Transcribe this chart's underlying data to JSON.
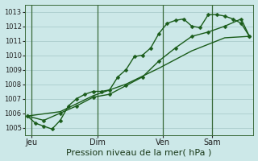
{
  "title": "Pression niveau de la mer( hPa )",
  "background_color": "#cce8e8",
  "plot_bg_color": "#cce8e8",
  "grid_color": "#aacccc",
  "line_color": "#1a5c1a",
  "ylim": [
    1004.5,
    1013.5
  ],
  "xlim": [
    -0.3,
    27.5
  ],
  "ytick_vals": [
    1005,
    1006,
    1007,
    1008,
    1009,
    1010,
    1011,
    1012,
    1013
  ],
  "day_labels": [
    "Jeu",
    "Dim",
    "Ven",
    "Sam"
  ],
  "day_positions": [
    0.5,
    8.5,
    16.5,
    22.5
  ],
  "vline_positions": [
    0.5,
    8.5,
    16.5,
    22.5
  ],
  "line1_x": [
    0,
    1,
    2,
    3,
    4,
    5,
    6,
    7,
    8,
    9,
    10,
    11,
    12,
    13,
    14,
    15,
    16,
    17,
    18,
    19,
    20,
    21,
    22,
    23,
    24,
    25,
    26,
    27
  ],
  "line1_y": [
    1005.8,
    1005.3,
    1005.1,
    1004.9,
    1005.5,
    1006.5,
    1007.0,
    1007.3,
    1007.5,
    1007.5,
    1007.6,
    1008.5,
    1009.0,
    1009.9,
    1010.0,
    1010.5,
    1011.5,
    1012.2,
    1012.4,
    1012.5,
    1012.0,
    1011.9,
    1012.8,
    1012.8,
    1012.7,
    1012.5,
    1012.2,
    1011.3
  ],
  "line2_x": [
    0,
    2,
    4,
    6,
    8,
    10,
    12,
    14,
    16,
    18,
    20,
    22,
    24,
    26,
    27
  ],
  "line2_y": [
    1005.8,
    1005.5,
    1006.0,
    1006.5,
    1007.1,
    1007.3,
    1007.9,
    1008.5,
    1009.6,
    1010.5,
    1011.3,
    1011.6,
    1012.0,
    1012.5,
    1011.3
  ],
  "line3_x": [
    0,
    4,
    8,
    12,
    16,
    20,
    24,
    27
  ],
  "line3_y": [
    1005.8,
    1006.1,
    1007.2,
    1008.0,
    1009.1,
    1010.3,
    1011.2,
    1011.3
  ],
  "marker": "D",
  "marker_size": 2.5,
  "linewidth": 1.0,
  "xlabel_fontsize": 8,
  "ytick_fontsize": 6,
  "xtick_fontsize": 7
}
